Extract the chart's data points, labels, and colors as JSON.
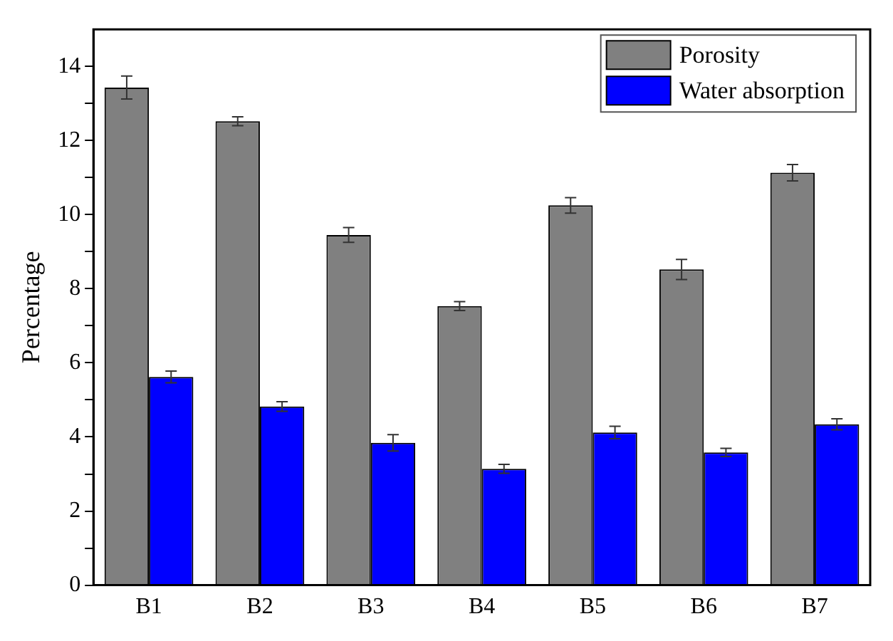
{
  "chart_data": {
    "type": "bar",
    "ylabel": "Percentage",
    "categories": [
      "B1",
      "B2",
      "B3",
      "B4",
      "B5",
      "B6",
      "B7"
    ],
    "series": [
      {
        "name": "Porosity",
        "color": "#808080",
        "values": [
          13.43,
          12.52,
          9.45,
          7.53,
          10.25,
          8.52,
          11.13
        ],
        "errors": [
          0.31,
          0.12,
          0.2,
          0.12,
          0.21,
          0.27,
          0.22
        ]
      },
      {
        "name": "Water absorption",
        "color": "#0000ff",
        "values": [
          5.62,
          4.82,
          3.84,
          3.14,
          4.12,
          3.58,
          4.34
        ],
        "errors": [
          0.16,
          0.13,
          0.22,
          0.12,
          0.17,
          0.11,
          0.15
        ]
      }
    ],
    "ylim": [
      0,
      15
    ],
    "yticks": [
      0,
      {
        "value": 1,
        "label": null
      },
      2,
      {
        "value": 3,
        "label": null
      },
      4,
      {
        "value": 5,
        "label": null
      },
      6,
      {
        "value": 7,
        "label": null
      },
      8,
      {
        "value": 9,
        "label": null
      },
      10,
      {
        "value": 11,
        "label": null
      },
      12,
      {
        "value": 13,
        "label": null
      },
      14
    ],
    "grid": false,
    "legend": "top right"
  }
}
